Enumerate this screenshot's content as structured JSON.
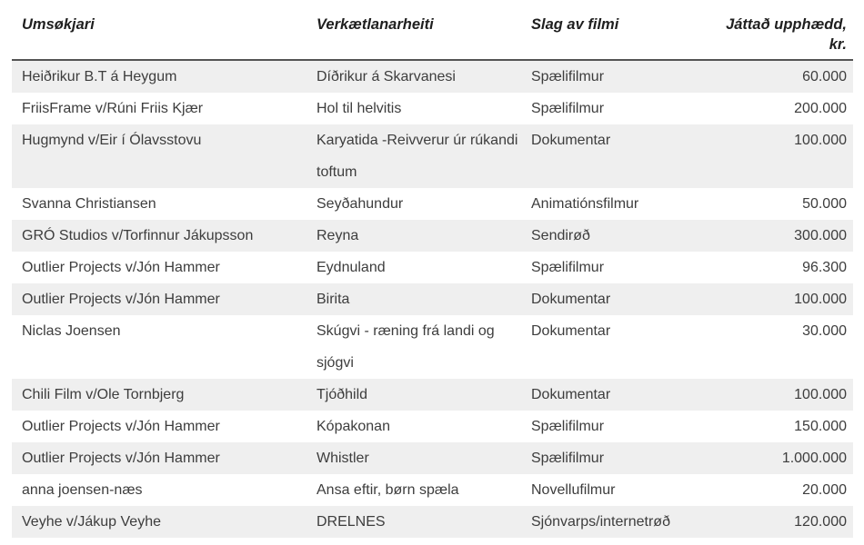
{
  "table": {
    "headers": [
      {
        "label": "Umsøkjari"
      },
      {
        "label": "Verkætlanarheiti"
      },
      {
        "label": "Slag av filmi"
      },
      {
        "label": "Játtað upphædd,\nkr."
      }
    ],
    "rows": [
      [
        "Heiðrikur B.T á Heygum",
        "Díðrikur á Skarvanesi",
        "Spælifilmur",
        "60.000"
      ],
      [
        "FriisFrame v/Rúni Friis Kjær",
        "Hol til helvitis",
        "Spælifilmur",
        "200.000"
      ],
      [
        "Hugmynd v/Eir í Ólavsstovu",
        "Karyatida -Reivverur úr rúkandi toftum",
        "Dokumentar",
        "100.000"
      ],
      [
        "Svanna Christiansen",
        "Seyðahundur",
        "Animatiónsfilmur",
        "50.000"
      ],
      [
        "GRÓ Studios v/Torfinnur Jákupsson",
        "Reyna",
        "Sendirøð",
        "300.000"
      ],
      [
        "Outlier Projects v/Jón Hammer",
        "Eydnuland",
        "Spælifilmur",
        "96.300"
      ],
      [
        "Outlier Projects v/Jón Hammer",
        "Birita",
        "Dokumentar",
        "100.000"
      ],
      [
        "Niclas Joensen",
        "Skúgvi - ræning frá landi og sjógvi",
        "Dokumentar",
        "30.000"
      ],
      [
        "Chili Film v/Ole Tornbjerg",
        "Tjóðhild",
        "Dokumentar",
        "100.000"
      ],
      [
        "Outlier Projects v/Jón Hammer",
        "Kópakonan",
        "Spælifilmur",
        "150.000"
      ],
      [
        "Outlier Projects v/Jón Hammer",
        "Whistler",
        "Spælifilmur",
        "1.000.000"
      ],
      [
        "anna joensen-næs",
        "Ansa eftir, børn spæla",
        "Novellufilmur",
        "20.000"
      ],
      [
        "Veyhe v/Jákup Veyhe",
        "DRELNES",
        "Sjónvarps/internetrøð",
        "120.000"
      ]
    ],
    "colors": {
      "stripe": "#efefef",
      "header_rule": "#545454",
      "body_text": "#3d3d3d",
      "header_text": "#1f1f1f"
    }
  }
}
